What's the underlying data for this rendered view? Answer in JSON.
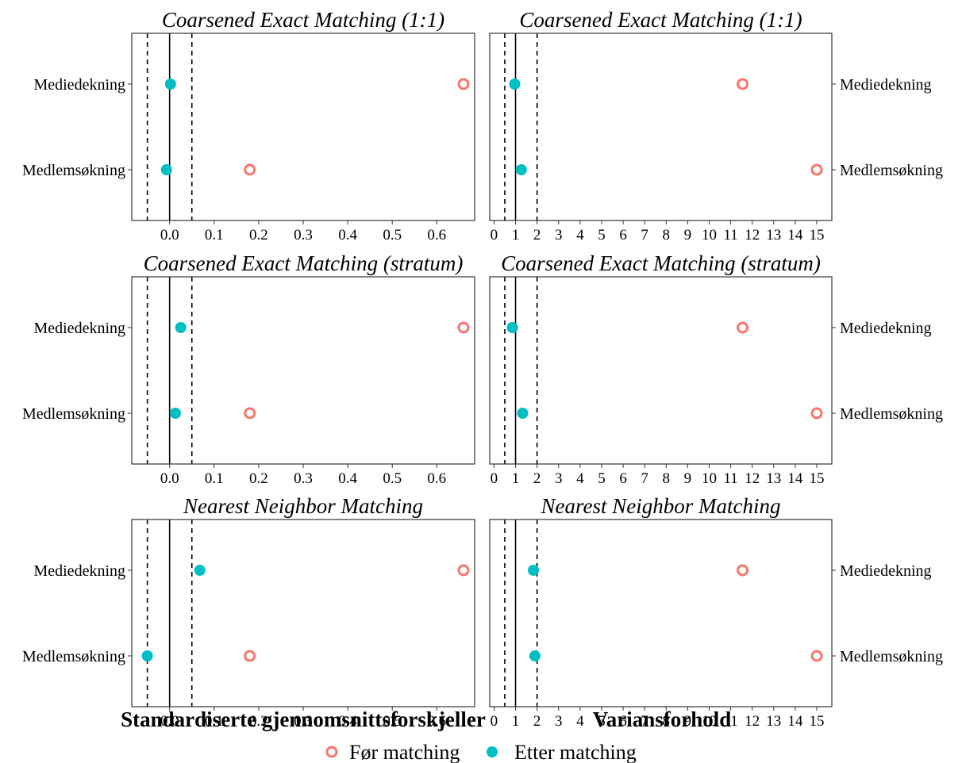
{
  "colors": {
    "before": "#F8766D",
    "after": "#00BFC4"
  },
  "legend": {
    "before_label": "Før matching",
    "after_label": "Etter matching"
  },
  "chart_data": [
    {
      "type": "scatter",
      "title": "Coarsened Exact Matching (1:1)",
      "xlabel": "Standardiserte gjennomsnittsforskjeller",
      "categories": [
        "Mediedekning",
        "Medlemsøkning"
      ],
      "xlim": [
        -0.085,
        0.685
      ],
      "xticks": [
        0,
        0.1,
        0.2,
        0.3,
        0.4,
        0.5,
        0.6
      ],
      "xtick_labels": [
        "0.0",
        "0.1",
        "0.2",
        "0.3",
        "0.4",
        "0.5",
        "0.6"
      ],
      "reference_lines": {
        "solid": [
          0
        ],
        "dashed": [
          -0.05,
          0.05
        ]
      },
      "series": [
        {
          "name": "Før matching",
          "values": [
            0.66,
            0.18
          ]
        },
        {
          "name": "Etter matching",
          "values": [
            0.002,
            -0.007
          ]
        }
      ]
    },
    {
      "type": "scatter",
      "title": "Coarsened Exact Matching (1:1)",
      "xlabel": "Variansforhold",
      "categories": [
        "Mediedekning",
        "Medlemsøkning"
      ],
      "xlim": [
        -0.2,
        15.7
      ],
      "xticks": [
        0,
        1,
        2,
        3,
        4,
        5,
        6,
        7,
        8,
        9,
        10,
        11,
        12,
        13,
        14,
        15
      ],
      "xtick_labels": [
        "0",
        "1",
        "2",
        "3",
        "4",
        "5",
        "6",
        "7",
        "8",
        "9",
        "10",
        "11",
        "12",
        "13",
        "14",
        "15"
      ],
      "reference_lines": {
        "solid": [
          1
        ],
        "dashed": [
          0.5,
          2
        ]
      },
      "series": [
        {
          "name": "Før matching",
          "values": [
            11.55,
            15.0
          ]
        },
        {
          "name": "Etter matching",
          "values": [
            0.96,
            1.27
          ]
        }
      ]
    },
    {
      "type": "scatter",
      "title": "Coarsened Exact Matching (stratum)",
      "xlabel": "Standardiserte gjennomsnittsforskjeller",
      "categories": [
        "Mediedekning",
        "Medlemsøkning"
      ],
      "xlim": [
        -0.085,
        0.685
      ],
      "xticks": [
        0,
        0.1,
        0.2,
        0.3,
        0.4,
        0.5,
        0.6
      ],
      "xtick_labels": [
        "0.0",
        "0.1",
        "0.2",
        "0.3",
        "0.4",
        "0.5",
        "0.6"
      ],
      "reference_lines": {
        "solid": [
          0
        ],
        "dashed": [
          -0.05,
          0.05
        ]
      },
      "series": [
        {
          "name": "Før matching",
          "values": [
            0.66,
            0.18
          ]
        },
        {
          "name": "Etter matching",
          "values": [
            0.025,
            0.013
          ]
        }
      ]
    },
    {
      "type": "scatter",
      "title": "Coarsened Exact Matching (stratum)",
      "xlabel": "Variansforhold",
      "categories": [
        "Mediedekning",
        "Medlemsøkning"
      ],
      "xlim": [
        -0.2,
        15.7
      ],
      "xticks": [
        0,
        1,
        2,
        3,
        4,
        5,
        6,
        7,
        8,
        9,
        10,
        11,
        12,
        13,
        14,
        15
      ],
      "xtick_labels": [
        "0",
        "1",
        "2",
        "3",
        "4",
        "5",
        "6",
        "7",
        "8",
        "9",
        "10",
        "11",
        "12",
        "13",
        "14",
        "15"
      ],
      "reference_lines": {
        "solid": [
          1
        ],
        "dashed": [
          0.5,
          2
        ]
      },
      "series": [
        {
          "name": "Før matching",
          "values": [
            11.55,
            15.0
          ]
        },
        {
          "name": "Etter matching",
          "values": [
            0.85,
            1.33
          ]
        }
      ]
    },
    {
      "type": "scatter",
      "title": "Nearest Neighbor Matching",
      "xlabel": "Standardiserte gjennomsnittsforskjeller",
      "categories": [
        "Mediedekning",
        "Medlemsøkning"
      ],
      "xlim": [
        -0.085,
        0.685
      ],
      "xticks": [
        0,
        0.1,
        0.2,
        0.3,
        0.4,
        0.5,
        0.6
      ],
      "xtick_labels": [
        "0.0",
        "0.1",
        "0.2",
        "0.3",
        "0.4",
        "0.5",
        "0.6"
      ],
      "reference_lines": {
        "solid": [
          0
        ],
        "dashed": [
          -0.05,
          0.05
        ]
      },
      "series": [
        {
          "name": "Før matching",
          "values": [
            0.66,
            0.18
          ]
        },
        {
          "name": "Etter matching",
          "values": [
            0.068,
            -0.05
          ]
        }
      ]
    },
    {
      "type": "scatter",
      "title": "Nearest Neighbor Matching",
      "xlabel": "Variansforhold",
      "categories": [
        "Mediedekning",
        "Medlemsøkning"
      ],
      "xlim": [
        -0.2,
        15.7
      ],
      "xticks": [
        0,
        1,
        2,
        3,
        4,
        5,
        6,
        7,
        8,
        9,
        10,
        11,
        12,
        13,
        14,
        15
      ],
      "xtick_labels": [
        "0",
        "1",
        "2",
        "3",
        "4",
        "5",
        "6",
        "7",
        "8",
        "9",
        "10",
        "11",
        "12",
        "13",
        "14",
        "15"
      ],
      "reference_lines": {
        "solid": [
          1
        ],
        "dashed": [
          0.5,
          2
        ]
      },
      "series": [
        {
          "name": "Før matching",
          "values": [
            11.55,
            15.0
          ]
        },
        {
          "name": "Etter matching",
          "values": [
            1.83,
            1.9
          ]
        }
      ]
    }
  ]
}
